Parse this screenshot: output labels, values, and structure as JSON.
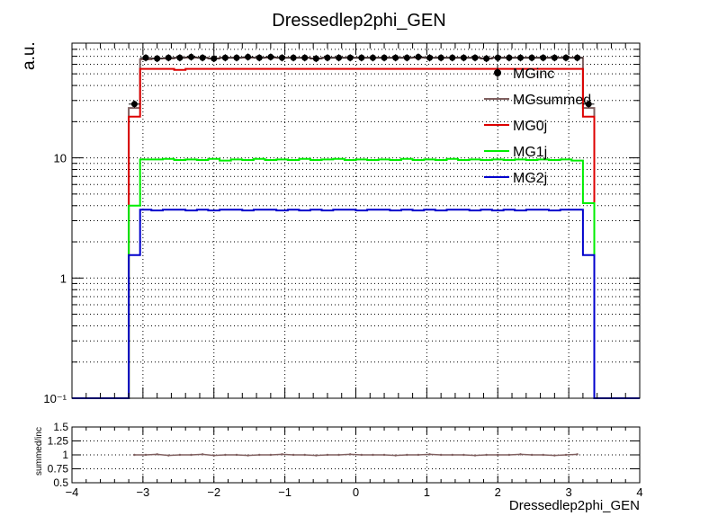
{
  "chart_data": [
    {
      "type": "line",
      "title": "Dressedlep2phi_GEN",
      "ylabel": "a.u.",
      "xlabel": "",
      "xlim": [
        -4,
        4
      ],
      "ylim": [
        0.1,
        90
      ],
      "yscale": "log",
      "grid": true,
      "legend_placement": "top-right",
      "y_tick_labels": [
        "10⁻¹",
        "1",
        "10"
      ],
      "x_edges": [
        -4,
        -3.84,
        -3.68,
        -3.52,
        -3.36,
        -3.2,
        -3.04,
        -2.88,
        -2.72,
        -2.56,
        -2.4,
        -2.24,
        -2.08,
        -1.92,
        -1.76,
        -1.6,
        -1.44,
        -1.28,
        -1.12,
        -0.96,
        -0.8,
        -0.64,
        -0.48,
        -0.32,
        -0.16,
        0,
        0.16,
        0.32,
        0.48,
        0.64,
        0.8,
        0.96,
        1.12,
        1.28,
        1.44,
        1.6,
        1.76,
        1.92,
        2.08,
        2.24,
        2.4,
        2.56,
        2.72,
        2.88,
        3.04,
        3.2,
        3.36,
        3.52,
        3.68,
        3.84,
        4
      ],
      "series": [
        {
          "name": "MGinc",
          "style": "markers",
          "color": "#000000",
          "values": [
            null,
            null,
            null,
            null,
            null,
            28,
            68,
            67,
            68,
            68,
            69,
            68,
            67,
            68,
            68,
            69,
            68,
            69,
            68,
            68,
            68,
            67,
            68,
            68,
            68,
            68,
            68,
            68,
            68,
            68,
            69,
            68,
            68,
            68,
            68,
            68,
            67,
            68,
            68,
            68,
            68,
            68,
            68,
            68,
            68,
            28,
            null,
            null,
            null,
            null
          ]
        },
        {
          "name": "MGsummed",
          "style": "step",
          "color": "#7f5f5f",
          "values": [
            0.1,
            0.1,
            0.1,
            0.1,
            0.1,
            26,
            66,
            67,
            67,
            68,
            68,
            68,
            67,
            68,
            68,
            68,
            68,
            68,
            68,
            68,
            68,
            67,
            68,
            68,
            68,
            68,
            68,
            68,
            68,
            68,
            68,
            68,
            68,
            68,
            68,
            68,
            67,
            68,
            68,
            68,
            68,
            68,
            68,
            68,
            68,
            26,
            0.1,
            0.1,
            0.1,
            0.1
          ]
        },
        {
          "name": "MG0j",
          "style": "step",
          "color": "#dd0000",
          "values": [
            0.1,
            0.1,
            0.1,
            0.1,
            0.1,
            22,
            55,
            55,
            55,
            54,
            55,
            55,
            55,
            55,
            55,
            55,
            55,
            55,
            55,
            55,
            55,
            55,
            55,
            55,
            55,
            55,
            55,
            55,
            55,
            55,
            55,
            55,
            55,
            55,
            55,
            55,
            55,
            55,
            55,
            55,
            55,
            55,
            55,
            55,
            55,
            22,
            0.1,
            0.1,
            0.1,
            0.1
          ]
        },
        {
          "name": "MG1j",
          "style": "step",
          "color": "#00ee00",
          "values": [
            0.1,
            0.1,
            0.1,
            0.1,
            0.1,
            4,
            9.7,
            9.7,
            9.8,
            9.6,
            9.7,
            9.6,
            9.8,
            9.5,
            9.7,
            9.6,
            9.8,
            9.6,
            9.7,
            9.6,
            9.8,
            9.6,
            9.7,
            9.8,
            9.6,
            9.7,
            9.6,
            9.7,
            9.6,
            9.8,
            9.6,
            9.7,
            9.6,
            9.8,
            9.6,
            9.7,
            9.6,
            9.7,
            9.6,
            9.7,
            9.6,
            9.7,
            9.6,
            9.7,
            9.5,
            4.2,
            0.1,
            0.1,
            0.1,
            0.1
          ]
        },
        {
          "name": "MG2j",
          "style": "step",
          "color": "#0000cc",
          "values": [
            0.1,
            0.1,
            0.1,
            0.1,
            0.1,
            1.55,
            3.7,
            3.65,
            3.7,
            3.7,
            3.65,
            3.7,
            3.65,
            3.7,
            3.7,
            3.65,
            3.7,
            3.7,
            3.65,
            3.7,
            3.65,
            3.7,
            3.65,
            3.7,
            3.7,
            3.65,
            3.7,
            3.7,
            3.65,
            3.7,
            3.65,
            3.7,
            3.65,
            3.7,
            3.7,
            3.65,
            3.7,
            3.65,
            3.7,
            3.65,
            3.7,
            3.7,
            3.65,
            3.7,
            3.7,
            1.55,
            0.1,
            0.1,
            0.1,
            0.1
          ]
        }
      ]
    },
    {
      "type": "line",
      "title": "",
      "xlabel": "Dressedlep2phi_GEN",
      "ylabel": "summed/inc",
      "xlim": [
        -4,
        4
      ],
      "ylim": [
        0.5,
        1.5
      ],
      "grid": true,
      "y_tick_labels": [
        "0.5",
        "0.75",
        "1",
        "1.25",
        "1.5"
      ],
      "y_tick_values": [
        0.5,
        0.75,
        1,
        1.25,
        1.5
      ],
      "x_tick_labels": [
        "−4",
        "−3",
        "−2",
        "−1",
        "0",
        "1",
        "2",
        "3",
        "4"
      ],
      "x_tick_values": [
        -4,
        -3,
        -2,
        -1,
        0,
        1,
        2,
        3,
        4
      ],
      "x": [
        -3.12,
        -2.96,
        -2.8,
        -2.64,
        -2.48,
        -2.32,
        -2.16,
        -2.0,
        -1.84,
        -1.68,
        -1.52,
        -1.36,
        -1.2,
        -1.04,
        -0.88,
        -0.72,
        -0.56,
        -0.4,
        -0.24,
        -0.08,
        0.08,
        0.24,
        0.4,
        0.56,
        0.72,
        0.88,
        1.04,
        1.2,
        1.36,
        1.52,
        1.68,
        1.84,
        2.0,
        2.16,
        2.32,
        2.48,
        2.64,
        2.8,
        2.96,
        3.12
      ],
      "series": [
        {
          "name": "",
          "color": "#7f5f5f",
          "values": [
            1.0,
            1.0,
            1.01,
            0.99,
            1.0,
            1.0,
            1.01,
            0.99,
            1.0,
            1.0,
            0.99,
            1.0,
            1.0,
            1.01,
            1.0,
            1.0,
            0.99,
            1.0,
            1.0,
            1.01,
            1.0,
            1.0,
            1.0,
            0.99,
            1.0,
            1.0,
            1.01,
            1.0,
            1.0,
            1.0,
            0.99,
            1.0,
            1.0,
            1.0,
            1.01,
            1.0,
            1.0,
            0.99,
            1.0,
            1.01
          ]
        }
      ]
    }
  ]
}
